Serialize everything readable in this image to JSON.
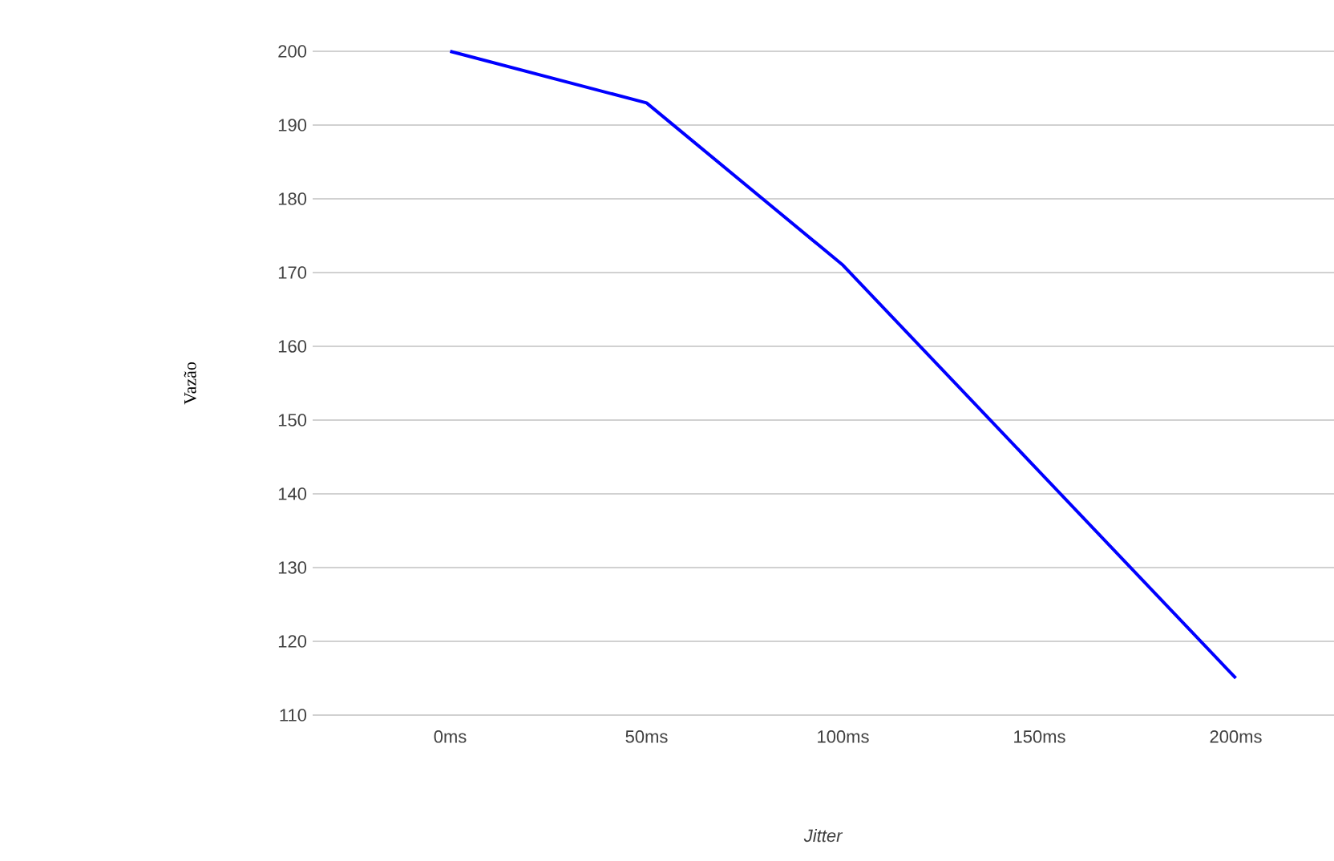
{
  "chart_data": {
    "type": "line",
    "xlabel": "*Jitter*",
    "ylabel": "Vazão",
    "categories": [
      "0ms",
      "50ms",
      "100ms",
      "150ms",
      "200ms"
    ],
    "series": [
      {
        "color": "#0000ff",
        "values": [
          200,
          193,
          171,
          143,
          115
        ]
      }
    ],
    "ylim": [
      110,
      200
    ],
    "yticks": [
      110,
      120,
      130,
      140,
      150,
      160,
      170,
      180,
      190,
      200
    ],
    "grid": "y",
    "marker": "none",
    "line_style": "solid"
  }
}
